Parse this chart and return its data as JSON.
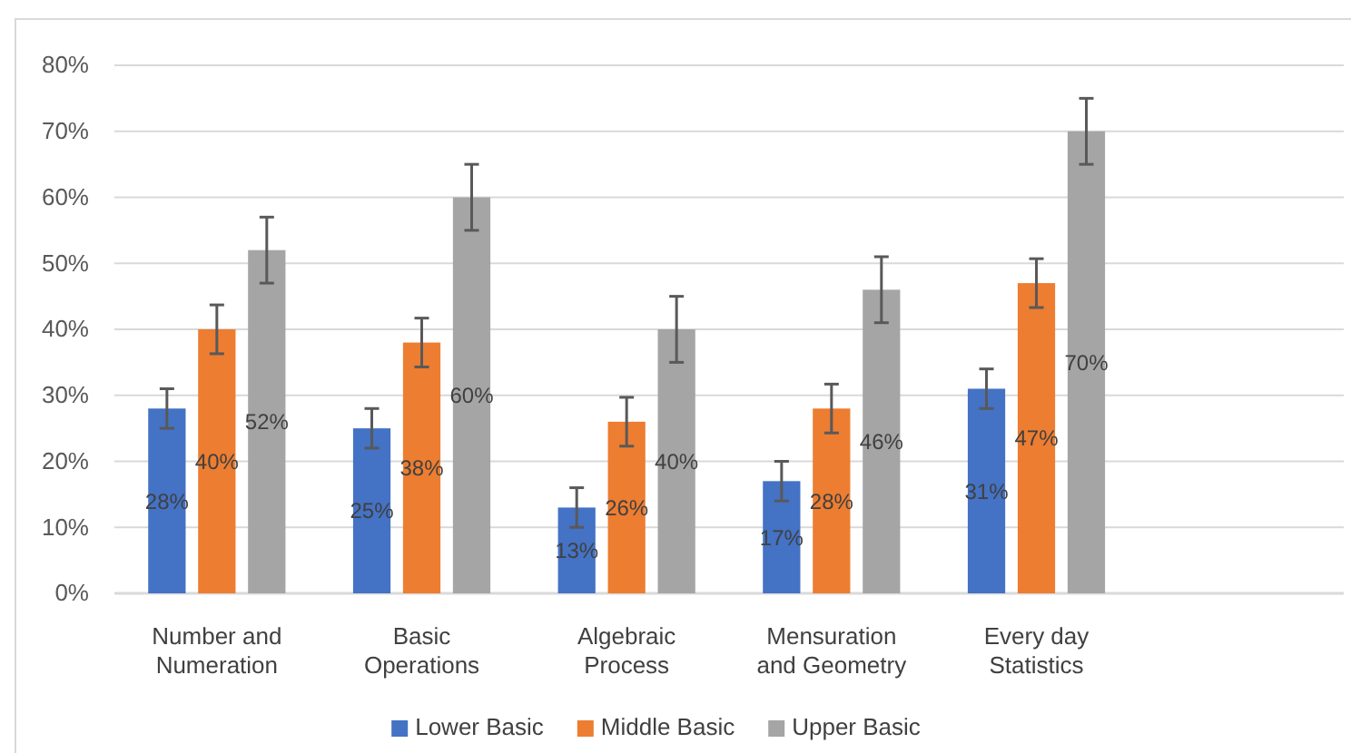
{
  "chart_data": {
    "type": "bar",
    "categories": [
      "Number and Numeration",
      "Basic Operations",
      "Algebraic Process",
      "Mensuration and Geometry",
      "Every day Statistics"
    ],
    "series": [
      {
        "name": "Lower Basic",
        "color": "#4472c4",
        "values": [
          28,
          25,
          13,
          17,
          31
        ],
        "errors": [
          3,
          3,
          3,
          3,
          3
        ],
        "value_labels": [
          "28%",
          "25%",
          "13%",
          "17%",
          "31%"
        ]
      },
      {
        "name": "Middle Basic",
        "color": "#ed7d31",
        "values": [
          40,
          38,
          26,
          28,
          47
        ],
        "errors": [
          3.7,
          3.7,
          3.7,
          3.7,
          3.7
        ],
        "value_labels": [
          "40%",
          "38%",
          "26%",
          "28%",
          "47%"
        ]
      },
      {
        "name": "Upper Basic",
        "color": "#a5a5a5",
        "values": [
          52,
          60,
          40,
          46,
          70
        ],
        "errors": [
          5,
          5,
          5,
          5,
          5
        ],
        "value_labels": [
          "52%",
          "60%",
          "40%",
          "46%",
          "70%"
        ]
      }
    ],
    "ylim": [
      0,
      80
    ],
    "yticks": [
      {
        "value": 0,
        "label": "0%"
      },
      {
        "value": 10,
        "label": "10%"
      },
      {
        "value": 20,
        "label": "20%"
      },
      {
        "value": 30,
        "label": "30%"
      },
      {
        "value": 40,
        "label": "40%"
      },
      {
        "value": 50,
        "label": "50%"
      },
      {
        "value": 60,
        "label": "60%"
      },
      {
        "value": 70,
        "label": "70%"
      },
      {
        "value": 80,
        "label": "80%"
      }
    ],
    "grid": "y",
    "legend": "bottom"
  }
}
